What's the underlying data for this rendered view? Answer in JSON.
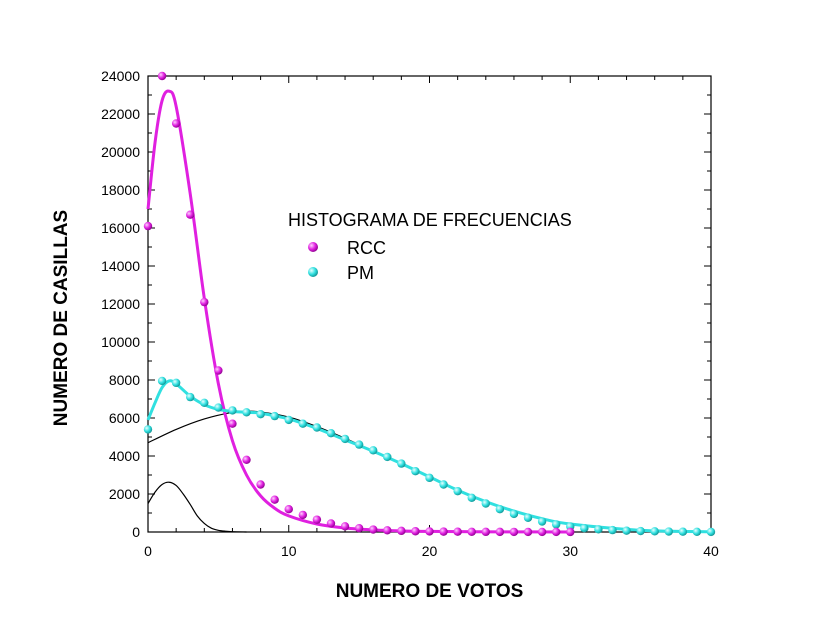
{
  "chart_data": {
    "type": "scatter",
    "title": "",
    "xlabel": "NUMERO DE VOTOS",
    "ylabel": "NUMERO DE CASILLAS",
    "xlim": [
      0,
      40
    ],
    "ylim": [
      0,
      24000
    ],
    "xticks": [
      0,
      10,
      20,
      30,
      40
    ],
    "yticks": [
      0,
      2000,
      4000,
      6000,
      8000,
      10000,
      12000,
      14000,
      16000,
      18000,
      20000,
      22000,
      24000
    ],
    "grid": false,
    "legend": {
      "title": "HISTOGRAMA DE FRECUENCIAS",
      "placement": "upper-center"
    },
    "series": [
      {
        "name": "RCC",
        "color": "#e020e0",
        "x": [
          0,
          1,
          2,
          3,
          4,
          5,
          6,
          7,
          8,
          9,
          10,
          11,
          12,
          13,
          14,
          15,
          16,
          17,
          18,
          19,
          20,
          21,
          22,
          23,
          24,
          25,
          26,
          27,
          28,
          29,
          30
        ],
        "y": [
          16100,
          24000,
          21500,
          16700,
          12100,
          8500,
          5700,
          3800,
          2500,
          1700,
          1200,
          900,
          650,
          450,
          300,
          200,
          130,
          90,
          60,
          40,
          30,
          20,
          15,
          10,
          8,
          6,
          5,
          4,
          3,
          2,
          1
        ],
        "fit": {
          "color": "#e020e0",
          "x": [
            0,
            0.5,
            1,
            1.5,
            2,
            3,
            4,
            5,
            6,
            7,
            8,
            9,
            10,
            12,
            14,
            16,
            18,
            20,
            25,
            30
          ],
          "y": [
            17000,
            20500,
            22700,
            23200,
            22400,
            17800,
            12300,
            7800,
            4800,
            3000,
            1900,
            1250,
            850,
            420,
            210,
            110,
            55,
            30,
            8,
            2
          ]
        }
      },
      {
        "name": "PM",
        "color": "#30e0e0",
        "x": [
          0,
          1,
          2,
          3,
          4,
          5,
          6,
          7,
          8,
          9,
          10,
          11,
          12,
          13,
          14,
          15,
          16,
          17,
          18,
          19,
          20,
          21,
          22,
          23,
          24,
          25,
          26,
          27,
          28,
          29,
          30,
          31,
          32,
          33,
          34,
          35,
          36,
          37,
          38,
          39,
          40
        ],
        "y": [
          5400,
          7950,
          7850,
          7100,
          6800,
          6550,
          6400,
          6300,
          6200,
          6100,
          5900,
          5700,
          5500,
          5200,
          4900,
          4600,
          4300,
          3950,
          3600,
          3200,
          2850,
          2500,
          2150,
          1800,
          1500,
          1200,
          950,
          750,
          550,
          400,
          290,
          200,
          140,
          100,
          70,
          50,
          35,
          25,
          15,
          10,
          5
        ],
        "fit": {
          "color": "#30e0e0",
          "x": [
            0,
            0.5,
            1,
            1.5,
            2,
            3,
            4,
            5,
            6,
            7,
            8,
            10,
            12,
            14,
            16,
            18,
            20,
            22,
            24,
            26,
            28,
            30,
            35,
            40
          ],
          "y": [
            5900,
            6800,
            7600,
            7950,
            7800,
            7150,
            6700,
            6450,
            6350,
            6300,
            6250,
            5950,
            5450,
            4850,
            4250,
            3600,
            2900,
            2200,
            1600,
            1100,
            700,
            420,
            90,
            10
          ]
        }
      }
    ],
    "components": [
      {
        "color": "#000000",
        "x": [
          0,
          0.5,
          1,
          1.5,
          2,
          2.5,
          3,
          3.5,
          4,
          4.5,
          5,
          5.5,
          6,
          7
        ],
        "y": [
          1500,
          2100,
          2500,
          2620,
          2450,
          2000,
          1450,
          850,
          450,
          200,
          90,
          40,
          15,
          0
        ]
      },
      {
        "color": "#000000",
        "x": [
          0,
          2,
          4,
          6,
          7,
          8,
          10,
          12,
          14,
          16,
          18,
          20,
          22,
          24,
          26,
          28,
          30,
          32,
          35,
          40
        ],
        "y": [
          4700,
          5400,
          5950,
          6300,
          6350,
          6320,
          6050,
          5550,
          4930,
          4250,
          3560,
          2900,
          2200,
          1600,
          1100,
          700,
          420,
          230,
          90,
          10
        ]
      }
    ]
  }
}
